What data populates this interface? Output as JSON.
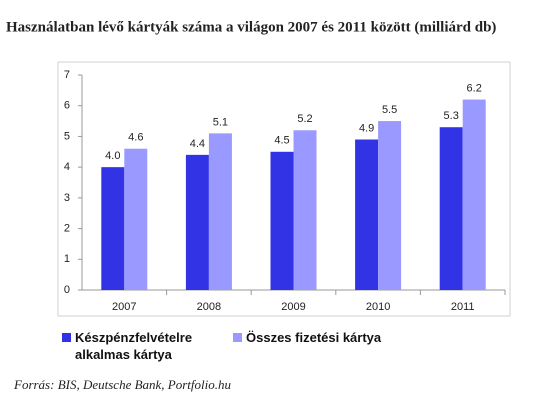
{
  "chart_data": {
    "type": "bar",
    "title": "Használatban lévő kártyák száma a világon 2007 és 2011 között (milliárd db)",
    "source": "Forrás: BIS, Deutsche Bank, Portfolio.hu",
    "categories": [
      "2007",
      "2008",
      "2009",
      "2010",
      "2011"
    ],
    "series": [
      {
        "name": "Készpénzfelvételre alkalmas kártya",
        "color": "#3333e6",
        "values": [
          4.0,
          4.4,
          4.5,
          4.9,
          5.3
        ],
        "value_labels": [
          "4.0",
          "4.4",
          "4.5",
          "4.9",
          "5.3"
        ]
      },
      {
        "name": "Összes fizetési kártya",
        "color": "#9999ff",
        "values": [
          4.6,
          5.1,
          5.2,
          5.5,
          6.2
        ]
      }
    ],
    "ylim": [
      0,
      7
    ],
    "yticks": [
      0,
      1,
      2,
      3,
      4,
      5,
      6,
      7
    ],
    "grid": false
  }
}
